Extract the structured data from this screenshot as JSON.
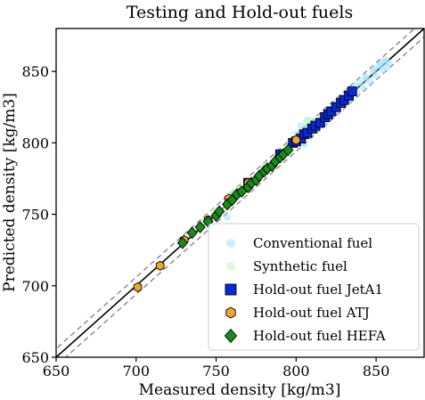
{
  "chart_data": {
    "type": "scatter",
    "title": "Testing and Hold-out fuels",
    "xlabel": "Measured density [kg/m3]",
    "ylabel": "Predicted density [kg/m3]",
    "xlim": [
      650,
      880
    ],
    "ylim": [
      650,
      880
    ],
    "xticks": [
      650,
      700,
      750,
      800,
      850
    ],
    "yticks": [
      650,
      700,
      750,
      800,
      850
    ],
    "grid": false,
    "legend_position": "lower-right",
    "reference_lines": [
      {
        "kind": "parity",
        "offset": 0,
        "style": "solid",
        "color": "#000000"
      },
      {
        "kind": "parity",
        "offset": 6,
        "style": "dashed",
        "color": "#808080"
      },
      {
        "kind": "parity",
        "offset": -6,
        "style": "dashed",
        "color": "#808080"
      }
    ],
    "series": [
      {
        "name": "Conventional fuel",
        "marker": "circle",
        "color": "#9fe3ff",
        "points": [
          [
            800,
            806
          ],
          [
            802,
            803
          ],
          [
            804,
            807
          ],
          [
            805,
            799
          ],
          [
            806,
            810
          ],
          [
            808,
            805
          ],
          [
            810,
            813
          ],
          [
            811,
            808
          ],
          [
            813,
            815
          ],
          [
            815,
            812
          ],
          [
            816,
            818
          ],
          [
            818,
            814
          ],
          [
            820,
            822
          ],
          [
            822,
            819
          ],
          [
            824,
            826
          ],
          [
            826,
            823
          ],
          [
            828,
            830
          ],
          [
            830,
            827
          ],
          [
            832,
            835
          ],
          [
            834,
            831
          ],
          [
            836,
            838
          ],
          [
            838,
            835
          ],
          [
            840,
            842
          ],
          [
            842,
            839
          ],
          [
            844,
            846
          ],
          [
            846,
            843
          ],
          [
            848,
            850
          ],
          [
            850,
            847
          ],
          [
            852,
            854
          ],
          [
            854,
            851
          ],
          [
            855,
            857
          ],
          [
            857,
            853
          ],
          [
            858,
            856
          ],
          [
            803,
            812
          ],
          [
            807,
            816
          ],
          [
            812,
            810
          ],
          [
            819,
            817
          ],
          [
            825,
            828
          ],
          [
            831,
            833
          ],
          [
            837,
            840
          ],
          [
            843,
            845
          ],
          [
            849,
            852
          ],
          [
            853,
            855
          ],
          [
            856,
            858
          ],
          [
            757,
            748
          ],
          [
            760,
            764
          ]
        ]
      },
      {
        "name": "Synthetic fuel",
        "marker": "circle",
        "color": "#c8f5c8",
        "points": [
          [
            730,
            733
          ],
          [
            735,
            737
          ],
          [
            742,
            744
          ],
          [
            748,
            752
          ],
          [
            755,
            753
          ],
          [
            761,
            765
          ],
          [
            765,
            768
          ],
          [
            770,
            772
          ],
          [
            775,
            777
          ],
          [
            780,
            784
          ],
          [
            785,
            786
          ],
          [
            790,
            793
          ],
          [
            795,
            797
          ],
          [
            800,
            803
          ],
          [
            803,
            808
          ],
          [
            806,
            814
          ],
          [
            809,
            816
          ],
          [
            812,
            815
          ],
          [
            818,
            820
          ]
        ]
      },
      {
        "name": "Hold-out fuel JetA1",
        "marker": "square",
        "color": "#0a28d8",
        "points": [
          [
            770,
            772
          ],
          [
            790,
            792
          ],
          [
            798,
            800
          ],
          [
            800,
            801
          ],
          [
            803,
            803
          ],
          [
            805,
            806
          ],
          [
            807,
            807
          ],
          [
            810,
            810
          ],
          [
            812,
            812
          ],
          [
            815,
            814
          ],
          [
            818,
            818
          ],
          [
            820,
            820
          ],
          [
            822,
            822
          ],
          [
            825,
            825
          ],
          [
            828,
            828
          ],
          [
            830,
            830
          ],
          [
            833,
            833
          ],
          [
            835,
            836
          ]
        ]
      },
      {
        "name": "Hold-out fuel ATJ",
        "marker": "hexagon",
        "color": "#f4a62a",
        "points": [
          [
            701,
            699
          ],
          [
            715,
            714
          ],
          [
            730,
            732
          ],
          [
            745,
            746
          ],
          [
            758,
            761
          ],
          [
            770,
            772
          ],
          [
            800,
            802
          ]
        ]
      },
      {
        "name": "Hold-out fuel HEFA",
        "marker": "diamond",
        "color": "#1a8a1a",
        "points": [
          [
            729,
            730
          ],
          [
            735,
            737
          ],
          [
            740,
            741
          ],
          [
            745,
            745
          ],
          [
            750,
            749
          ],
          [
            752,
            752
          ],
          [
            757,
            757
          ],
          [
            760,
            760
          ],
          [
            763,
            764
          ],
          [
            766,
            766
          ],
          [
            770,
            769
          ],
          [
            772,
            772
          ],
          [
            775,
            774
          ],
          [
            777,
            777
          ],
          [
            780,
            780
          ],
          [
            782,
            782
          ],
          [
            785,
            784
          ],
          [
            787,
            787
          ],
          [
            790,
            790
          ],
          [
            792,
            792
          ],
          [
            795,
            795
          ]
        ]
      }
    ]
  }
}
